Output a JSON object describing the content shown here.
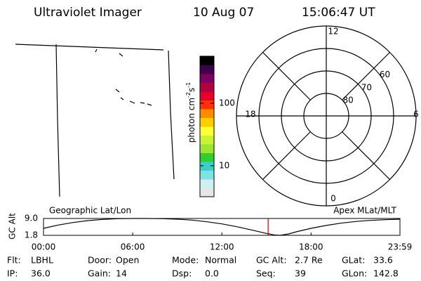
{
  "header": {
    "title": "Ultraviolet Imager",
    "date": "10 Aug 07",
    "time": "15:06:47 UT"
  },
  "colorbar": {
    "label_parts": [
      "photon cm",
      "-2",
      "s",
      "-1"
    ],
    "log_scale": true,
    "clim": [
      3.2,
      565
    ],
    "ticks": [
      10,
      100
    ],
    "colors": [
      "#e6e6e6",
      "#cfeff0",
      "#7fe3e6",
      "#3ccfc8",
      "#33cc33",
      "#99e633",
      "#ccf033",
      "#ffff33",
      "#ffcc00",
      "#ff8c00",
      "#ff3300",
      "#e6002e",
      "#b30040",
      "#800060",
      "#40004d",
      "#000000"
    ]
  },
  "polar": {
    "latlim": [
      90,
      50
    ],
    "lat_ticks": [
      80,
      70,
      60
    ],
    "mlt_ticks": [
      12,
      6,
      0,
      18
    ]
  },
  "altitude": {
    "left_title": "Geographic Lat/Lon",
    "right_title": "Apex MLat/MLT",
    "ylabel": "GC Alt",
    "ylim": [
      1.8,
      9.0
    ],
    "yticks": [
      {
        "value": 9.0,
        "label": "9.0"
      },
      1.8
    ],
    "xlim": [
      0,
      23.983
    ],
    "xticks": [
      {
        "value": 0,
        "label": "00:00"
      },
      {
        "value": 6,
        "label": "06:00"
      },
      {
        "value": 12,
        "label": "12:00"
      },
      {
        "value": 18,
        "label": "18:00"
      },
      {
        "value": 23.983,
        "label": "23:59"
      }
    ],
    "x": [
      0,
      1,
      2,
      3,
      4,
      5,
      6,
      7,
      8,
      9,
      10,
      11,
      12,
      13,
      14,
      15,
      15.5,
      15.9,
      16.5,
      17,
      18,
      19,
      20,
      21,
      22,
      23,
      23.983
    ],
    "values": [
      4.8,
      6.2,
      7.3,
      8.1,
      8.6,
      8.9,
      9.0,
      9.0,
      8.9,
      8.7,
      8.3,
      7.6,
      6.7,
      5.5,
      4.1,
      2.6,
      2.0,
      1.8,
      2.4,
      3.3,
      4.8,
      6.0,
      7.0,
      7.7,
      8.2,
      8.5,
      8.7
    ],
    "current_time": 15.113,
    "marker_color": "#cc0000"
  },
  "info": [
    [
      {
        "label": "Flt:",
        "value": "LBHL"
      },
      {
        "label": "Door:",
        "value": "Open"
      },
      {
        "label": "Mode:",
        "value": "Normal"
      },
      {
        "label": "GC Alt:",
        "value": "2.7 Re"
      },
      {
        "label": "GLat:",
        "value": "33.6"
      }
    ],
    [
      {
        "label": "IP:",
        "value": "36.0"
      },
      {
        "label": "Gain:",
        "value": "14"
      },
      {
        "label": "Dsp:",
        "value": "0.0"
      },
      {
        "label": "Seq:",
        "value": "39"
      },
      {
        "label": "GLon:",
        "value": "142.8"
      }
    ]
  ]
}
